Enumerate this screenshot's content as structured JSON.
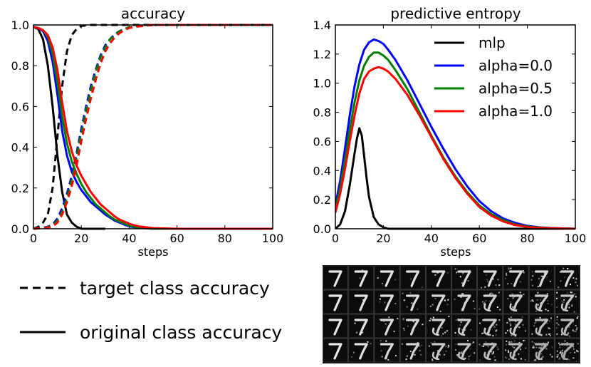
{
  "chart_data": [
    {
      "type": "line",
      "title": "accuracy",
      "xlabel": "steps",
      "ylabel": "",
      "xlim": [
        0,
        100
      ],
      "ylim": [
        0.0,
        1.0
      ],
      "xticks": [
        "0",
        "20",
        "40",
        "60",
        "80",
        "100"
      ],
      "yticks": [
        "0.0",
        "0.2",
        "0.4",
        "0.6",
        "0.8",
        "1.0"
      ],
      "grid": false,
      "series": [
        {
          "name": "mlp",
          "kind": "original",
          "color": "#000000",
          "x": [
            0,
            2,
            4,
            6,
            8,
            10,
            12,
            14,
            16,
            18,
            20,
            24,
            30
          ],
          "y": [
            0.99,
            0.98,
            0.93,
            0.8,
            0.6,
            0.36,
            0.18,
            0.07,
            0.03,
            0.01,
            0.0,
            0.0,
            0.0
          ]
        },
        {
          "name": "mlp",
          "kind": "target",
          "color": "#000000",
          "x": [
            0,
            2,
            4,
            6,
            8,
            10,
            12,
            14,
            16,
            18,
            20,
            24,
            30,
            100
          ],
          "y": [
            0.0,
            0.01,
            0.03,
            0.07,
            0.2,
            0.45,
            0.7,
            0.87,
            0.95,
            0.98,
            0.995,
            1.0,
            1.0,
            1.0
          ]
        },
        {
          "name": "alpha=0.0",
          "kind": "original",
          "color": "#0000ff",
          "x": [
            0,
            2,
            4,
            6,
            8,
            10,
            12,
            14,
            16,
            18,
            20,
            22,
            24,
            26,
            28,
            30,
            32,
            34,
            36,
            38,
            40,
            44,
            50,
            60,
            100
          ],
          "y": [
            0.99,
            0.985,
            0.97,
            0.92,
            0.82,
            0.66,
            0.48,
            0.36,
            0.28,
            0.23,
            0.19,
            0.16,
            0.13,
            0.11,
            0.09,
            0.07,
            0.055,
            0.04,
            0.03,
            0.02,
            0.012,
            0.005,
            0.0,
            0.0,
            0.0
          ]
        },
        {
          "name": "alpha=0.0",
          "kind": "target",
          "color": "#0000ff",
          "x": [
            0,
            4,
            6,
            8,
            10,
            12,
            14,
            16,
            18,
            20,
            22,
            24,
            26,
            28,
            30,
            32,
            34,
            36,
            38,
            40,
            44,
            50,
            60,
            100
          ],
          "y": [
            0.0,
            0.005,
            0.01,
            0.02,
            0.05,
            0.1,
            0.17,
            0.26,
            0.37,
            0.49,
            0.6,
            0.7,
            0.78,
            0.85,
            0.9,
            0.93,
            0.955,
            0.97,
            0.98,
            0.988,
            0.995,
            1.0,
            1.0,
            1.0
          ]
        },
        {
          "name": "alpha=0.5",
          "kind": "original",
          "color": "#008000",
          "x": [
            0,
            2,
            4,
            6,
            8,
            10,
            12,
            14,
            16,
            18,
            20,
            22,
            24,
            26,
            28,
            30,
            32,
            34,
            36,
            38,
            40,
            44,
            50,
            60,
            100
          ],
          "y": [
            0.99,
            0.985,
            0.975,
            0.94,
            0.86,
            0.72,
            0.55,
            0.42,
            0.33,
            0.27,
            0.22,
            0.18,
            0.15,
            0.12,
            0.1,
            0.08,
            0.06,
            0.045,
            0.035,
            0.025,
            0.015,
            0.006,
            0.0,
            0.0,
            0.0
          ]
        },
        {
          "name": "alpha=0.5",
          "kind": "target",
          "color": "#008000",
          "x": [
            0,
            4,
            6,
            8,
            10,
            12,
            14,
            16,
            18,
            20,
            22,
            24,
            26,
            28,
            30,
            32,
            34,
            36,
            38,
            40,
            44,
            50,
            60,
            100
          ],
          "y": [
            0.0,
            0.004,
            0.008,
            0.016,
            0.04,
            0.085,
            0.15,
            0.24,
            0.35,
            0.47,
            0.58,
            0.68,
            0.77,
            0.84,
            0.89,
            0.93,
            0.95,
            0.97,
            0.98,
            0.988,
            0.995,
            1.0,
            1.0,
            1.0
          ]
        },
        {
          "name": "alpha=1.0",
          "kind": "original",
          "color": "#ff0000",
          "x": [
            0,
            2,
            4,
            6,
            8,
            10,
            12,
            14,
            16,
            18,
            20,
            22,
            24,
            26,
            28,
            30,
            32,
            34,
            36,
            38,
            40,
            42,
            44,
            50,
            60,
            100
          ],
          "y": [
            0.99,
            0.985,
            0.975,
            0.95,
            0.89,
            0.78,
            0.62,
            0.48,
            0.38,
            0.31,
            0.26,
            0.22,
            0.18,
            0.15,
            0.12,
            0.1,
            0.08,
            0.06,
            0.045,
            0.035,
            0.025,
            0.018,
            0.012,
            0.003,
            0.0,
            0.0
          ]
        },
        {
          "name": "alpha=1.0",
          "kind": "target",
          "color": "#ff0000",
          "x": [
            0,
            4,
            6,
            8,
            10,
            12,
            14,
            16,
            18,
            20,
            22,
            24,
            26,
            28,
            30,
            32,
            34,
            36,
            38,
            40,
            44,
            50,
            60,
            100
          ],
          "y": [
            0.0,
            0.003,
            0.006,
            0.012,
            0.03,
            0.07,
            0.13,
            0.21,
            0.31,
            0.43,
            0.54,
            0.64,
            0.73,
            0.81,
            0.87,
            0.91,
            0.94,
            0.96,
            0.975,
            0.985,
            0.993,
            1.0,
            1.0,
            1.0
          ]
        }
      ]
    },
    {
      "type": "line",
      "title": "predictive entropy",
      "xlabel": "steps",
      "ylabel": "",
      "xlim": [
        0,
        100
      ],
      "ylim": [
        0.0,
        1.4
      ],
      "xticks": [
        "0",
        "20",
        "40",
        "60",
        "80",
        "100"
      ],
      "yticks": [
        "0.0",
        "0.2",
        "0.4",
        "0.6",
        "0.8",
        "1.0",
        "1.2",
        "1.4"
      ],
      "grid": false,
      "legend_position": "top-right",
      "series": [
        {
          "name": "mlp",
          "color": "#000000",
          "x": [
            0,
            2,
            4,
            6,
            8,
            9,
            10,
            11,
            12,
            13,
            14,
            16,
            18,
            20,
            22,
            26,
            30,
            100
          ],
          "y": [
            0.0,
            0.03,
            0.12,
            0.3,
            0.52,
            0.62,
            0.69,
            0.64,
            0.5,
            0.35,
            0.22,
            0.08,
            0.03,
            0.01,
            0.0,
            0.0,
            0.0,
            0.0
          ]
        },
        {
          "name": "alpha=0.0",
          "color": "#0000ff",
          "x": [
            0,
            2,
            4,
            6,
            8,
            10,
            12,
            14,
            16,
            18,
            20,
            22,
            25,
            30,
            35,
            40,
            45,
            50,
            55,
            60,
            65,
            70,
            75,
            80,
            85,
            90,
            100
          ],
          "y": [
            0.16,
            0.33,
            0.55,
            0.78,
            0.98,
            1.13,
            1.23,
            1.28,
            1.3,
            1.29,
            1.27,
            1.23,
            1.16,
            1.02,
            0.86,
            0.7,
            0.55,
            0.41,
            0.29,
            0.19,
            0.12,
            0.07,
            0.04,
            0.02,
            0.01,
            0.005,
            0.0
          ]
        },
        {
          "name": "alpha=0.5",
          "color": "#008000",
          "x": [
            0,
            2,
            4,
            6,
            8,
            10,
            12,
            14,
            16,
            18,
            20,
            22,
            25,
            30,
            35,
            40,
            45,
            50,
            55,
            60,
            65,
            70,
            75,
            80,
            85,
            90,
            100
          ],
          "y": [
            0.13,
            0.28,
            0.47,
            0.68,
            0.87,
            1.02,
            1.12,
            1.18,
            1.21,
            1.21,
            1.19,
            1.16,
            1.09,
            0.96,
            0.8,
            0.64,
            0.49,
            0.36,
            0.25,
            0.16,
            0.1,
            0.06,
            0.03,
            0.015,
            0.008,
            0.004,
            0.0
          ]
        },
        {
          "name": "alpha=1.0",
          "color": "#ff0000",
          "x": [
            0,
            2,
            4,
            6,
            8,
            10,
            12,
            14,
            16,
            18,
            20,
            22,
            25,
            30,
            35,
            40,
            45,
            50,
            55,
            60,
            65,
            70,
            75,
            80,
            85,
            90,
            100
          ],
          "y": [
            0.11,
            0.24,
            0.41,
            0.6,
            0.78,
            0.93,
            1.03,
            1.08,
            1.1,
            1.11,
            1.1,
            1.08,
            1.03,
            0.92,
            0.78,
            0.63,
            0.48,
            0.35,
            0.24,
            0.15,
            0.09,
            0.05,
            0.025,
            0.012,
            0.006,
            0.003,
            0.0
          ]
        }
      ]
    }
  ],
  "legend_left": {
    "dashed_label": "target class accuracy",
    "solid_label": "original class accuracy"
  },
  "digit_strip": {
    "rows": 4,
    "columns": 10,
    "digit": "7"
  }
}
